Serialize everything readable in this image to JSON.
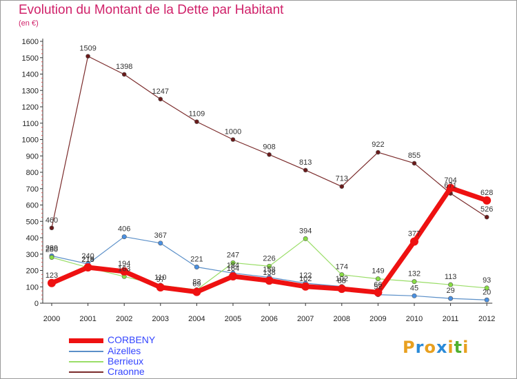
{
  "header": {
    "title": "Evolution du Montant de la Dette par Habitant",
    "unit": "(en €)"
  },
  "brand": {
    "letters": [
      "P",
      "r",
      "o",
      "x",
      "i",
      "t",
      "i"
    ],
    "colors": [
      "#e8a020",
      "#2a8ad8",
      "#e8a020",
      "#2a8ad8",
      "#e8a020",
      "#50b030",
      "#e8a020"
    ]
  },
  "colors": {
    "CORBENY": "#ee1111",
    "Aizelles": "#5a8fc8",
    "Berrieux": "#99dd66",
    "Craonne": "#6a1a1a"
  },
  "chart_data": {
    "type": "line",
    "title": "Evolution du Montant de la Dette par Habitant",
    "ylabel": "(en €)",
    "xlabel": "",
    "x": [
      2000,
      2001,
      2002,
      2003,
      2004,
      2005,
      2006,
      2007,
      2008,
      2009,
      2010,
      2011,
      2012
    ],
    "ylim": [
      0,
      1600
    ],
    "yticks": [
      0,
      100,
      200,
      300,
      400,
      500,
      600,
      700,
      800,
      900,
      1000,
      1100,
      1200,
      1300,
      1400,
      1500,
      1600
    ],
    "legend_position": "bottom-left",
    "grid": false,
    "series": [
      {
        "name": "CORBENY",
        "values": [
          123,
          219,
          194,
          97,
          69,
          164,
          138,
          102,
          88,
          66,
          377,
          704,
          628
        ]
      },
      {
        "name": "Aizelles",
        "values": [
          289,
          240,
          406,
          367,
          221,
          184,
          158,
          122,
          102,
          52,
          45,
          29,
          20
        ]
      },
      {
        "name": "Berrieux",
        "values": [
          280,
          218,
          163,
          110,
          82,
          247,
          226,
          394,
          174,
          149,
          132,
          113,
          93
        ]
      },
      {
        "name": "Craonne",
        "values": [
          460,
          1509,
          1398,
          1247,
          1109,
          1000,
          908,
          813,
          713,
          922,
          855,
          671,
          526
        ]
      }
    ]
  }
}
